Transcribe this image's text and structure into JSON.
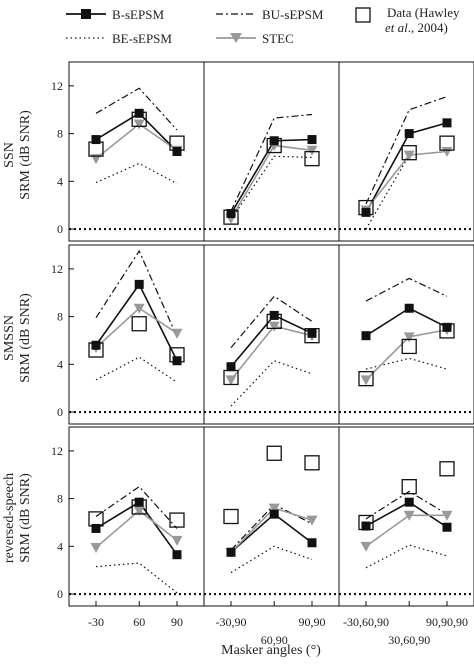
{
  "legend": {
    "items": [
      {
        "label": "B-sEPSM",
        "key": "b"
      },
      {
        "label": "BU-sEPSM",
        "key": "bu"
      },
      {
        "label": "BE-sEPSM",
        "key": "be"
      },
      {
        "label": "STEC",
        "key": "stec"
      }
    ],
    "data_label_line1": "Data (Hawley",
    "data_label_line2_italic": "et al",
    "data_label_line2_rest": "., 2004)"
  },
  "rows": [
    {
      "label_top": "SSN",
      "label_bottom": "SRM (dB SNR)"
    },
    {
      "label_top": "SMSSN",
      "label_bottom": "SRM (dB SNR)"
    },
    {
      "label_top": "reversed-speech",
      "label_bottom": "SRM (dB SNR)"
    }
  ],
  "xlabel": "Masker angles (°)",
  "column_ticks": [
    [
      "-30",
      "60",
      "90"
    ],
    [
      "-30,90",
      "60,90",
      "90,90"
    ],
    [
      "-30,60,90",
      "30,60,90",
      "90,90,90"
    ]
  ],
  "yticks": [
    "0",
    "4",
    "8",
    "12"
  ],
  "colors": {
    "b": "#111111",
    "bu": "#111111",
    "be": "#111111",
    "stec": "#999999",
    "data": "#111111"
  },
  "chart_data": {
    "type": "line",
    "ylim": [
      -1,
      14
    ],
    "grid": false,
    "panels": [
      {
        "row": "SSN",
        "x": [
          "-30",
          "60",
          "90"
        ],
        "series": [
          {
            "name": "B-sEPSM",
            "values": [
              7.5,
              9.7,
              6.5
            ]
          },
          {
            "name": "BU-sEPSM",
            "values": [
              9.7,
              11.8,
              8.3
            ]
          },
          {
            "name": "BE-sEPSM",
            "values": [
              3.9,
              5.5,
              3.8
            ]
          },
          {
            "name": "STEC",
            "values": [
              5.9,
              8.8,
              6.6
            ]
          },
          {
            "name": "Data (Hawley et al., 2004)",
            "values": [
              6.7,
              9.2,
              7.2
            ]
          }
        ]
      },
      {
        "row": "SSN",
        "x": [
          "-30,90",
          "60,90",
          "90,90"
        ],
        "series": [
          {
            "name": "B-sEPSM",
            "values": [
              1.3,
              7.4,
              7.5
            ]
          },
          {
            "name": "BU-sEPSM",
            "values": [
              1.5,
              9.3,
              9.6
            ]
          },
          {
            "name": "BE-sEPSM",
            "values": [
              0.8,
              6.1,
              6.0
            ]
          },
          {
            "name": "STEC",
            "values": [
              0.9,
              7.0,
              6.6
            ]
          },
          {
            "name": "Data (Hawley et al., 2004)",
            "values": [
              1.0,
              7.0,
              5.9
            ]
          }
        ]
      },
      {
        "row": "SSN",
        "x": [
          "-30,60,90",
          "30,60,90",
          "90,90,90"
        ],
        "series": [
          {
            "name": "B-sEPSM",
            "values": [
              1.4,
              8.0,
              8.9
            ]
          },
          {
            "name": "BU-sEPSM",
            "values": [
              2.1,
              10.0,
              11.1
            ]
          },
          {
            "name": "BE-sEPSM",
            "values": [
              0.0,
              6.2,
              6.5
            ]
          },
          {
            "name": "STEC",
            "values": [
              1.6,
              6.2,
              6.5
            ]
          },
          {
            "name": "Data (Hawley et al., 2004)",
            "values": [
              1.8,
              6.4,
              7.2
            ]
          }
        ]
      },
      {
        "row": "SMSSN",
        "x": [
          "-30",
          "60",
          "90"
        ],
        "series": [
          {
            "name": "B-sEPSM",
            "values": [
              5.6,
              10.7,
              4.3
            ]
          },
          {
            "name": "BU-sEPSM",
            "values": [
              7.9,
              13.5,
              6.3
            ]
          },
          {
            "name": "BE-sEPSM",
            "values": [
              2.7,
              4.6,
              2.5
            ]
          },
          {
            "name": "STEC",
            "values": [
              5.4,
              8.7,
              6.6
            ]
          },
          {
            "name": "Data (Hawley et al., 2004)",
            "values": [
              5.2,
              7.4,
              4.8
            ]
          }
        ]
      },
      {
        "row": "SMSSN",
        "x": [
          "-30,90",
          "60,90",
          "90,90"
        ],
        "series": [
          {
            "name": "B-sEPSM",
            "values": [
              3.8,
              8.1,
              6.6
            ]
          },
          {
            "name": "BU-sEPSM",
            "values": [
              5.4,
              9.7,
              7.6
            ]
          },
          {
            "name": "BE-sEPSM",
            "values": [
              0.5,
              4.3,
              3.2
            ]
          },
          {
            "name": "STEC",
            "values": [
              2.7,
              7.2,
              6.4
            ]
          },
          {
            "name": "Data (Hawley et al., 2004)",
            "values": [
              2.9,
              7.6,
              6.4
            ]
          }
        ]
      },
      {
        "row": "SMSSN",
        "x": [
          "-30,60,90",
          "30,60,90",
          "90,90,90"
        ],
        "series": [
          {
            "name": "B-sEPSM",
            "values": [
              6.4,
              8.7,
              7.1
            ]
          },
          {
            "name": "BU-sEPSM",
            "values": [
              9.3,
              11.2,
              9.7
            ]
          },
          {
            "name": "BE-sEPSM",
            "values": [
              3.6,
              4.5,
              3.6
            ]
          },
          {
            "name": "STEC",
            "values": [
              2.7,
              6.3,
              6.9
            ]
          },
          {
            "name": "Data (Hawley et al., 2004)",
            "values": [
              2.8,
              5.5,
              6.8
            ]
          }
        ]
      },
      {
        "row": "reversed-speech",
        "x": [
          "-30",
          "60",
          "90"
        ],
        "series": [
          {
            "name": "B-sEPSM",
            "values": [
              5.5,
              7.7,
              3.3
            ]
          },
          {
            "name": "BU-sEPSM",
            "values": [
              6.5,
              9.0,
              5.5
            ]
          },
          {
            "name": "BE-sEPSM",
            "values": [
              2.3,
              2.6,
              0.1
            ]
          },
          {
            "name": "STEC",
            "values": [
              3.9,
              7.0,
              4.5
            ]
          },
          {
            "name": "Data (Hawley et al., 2004)",
            "values": [
              6.3,
              7.3,
              6.2
            ]
          }
        ]
      },
      {
        "row": "reversed-speech",
        "x": [
          "-30,90",
          "60,90",
          "90,90"
        ],
        "series": [
          {
            "name": "B-sEPSM",
            "values": [
              3.5,
              6.7,
              4.3
            ]
          },
          {
            "name": "BU-sEPSM",
            "values": [
              3.7,
              7.5,
              5.9
            ]
          },
          {
            "name": "BE-sEPSM",
            "values": [
              1.8,
              4.0,
              2.9
            ]
          },
          {
            "name": "STEC",
            "values": [
              3.5,
              7.2,
              6.2
            ]
          },
          {
            "name": "Data (Hawley et al., 2004)",
            "values": [
              6.5,
              11.8,
              11.0
            ]
          }
        ]
      },
      {
        "row": "reversed-speech",
        "x": [
          "-30,60,90",
          "30,60,90",
          "90,90,90"
        ],
        "series": [
          {
            "name": "B-sEPSM",
            "values": [
              5.7,
              7.7,
              5.6
            ]
          },
          {
            "name": "BU-sEPSM",
            "values": [
              6.3,
              8.6,
              6.7
            ]
          },
          {
            "name": "BE-sEPSM",
            "values": [
              2.2,
              4.1,
              3.2
            ]
          },
          {
            "name": "STEC",
            "values": [
              4.0,
              6.6,
              6.6
            ]
          },
          {
            "name": "Data (Hawley et al., 2004)",
            "values": [
              6.0,
              9.0,
              10.5
            ]
          }
        ]
      }
    ]
  }
}
